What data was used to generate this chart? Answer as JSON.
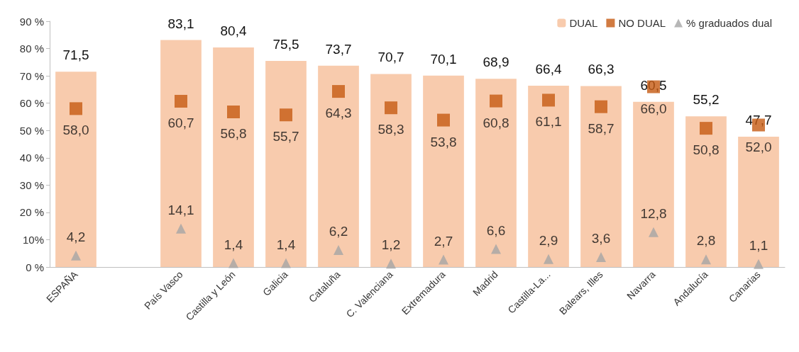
{
  "chart_data": {
    "type": "bar",
    "categories": [
      "ESPAÑA",
      null,
      "País Vasco",
      "Castilla y León",
      "Galicia",
      "Cataluña",
      "C. Valenciana",
      "Extremadura",
      "Madrid",
      "Castilla-La...",
      "Balears, Illes",
      "Navarra",
      "Andalucía",
      "Canarias"
    ],
    "series": [
      {
        "name": "DUAL",
        "type": "bar",
        "color": "#f8cbad",
        "values": [
          71.5,
          null,
          83.1,
          80.4,
          75.5,
          73.7,
          70.7,
          70.1,
          68.9,
          66.4,
          66.3,
          60.5,
          55.2,
          47.7
        ],
        "value_labels": [
          "71,5",
          null,
          "83,1",
          "80,4",
          "75,5",
          "73,7",
          "70,7",
          "70,1",
          "68,9",
          "66,4",
          "66,3",
          "60,5",
          "55,2",
          "47,7"
        ]
      },
      {
        "name": "NO DUAL",
        "type": "scatter",
        "marker": "square",
        "color": "#c55a11",
        "values": [
          58.0,
          null,
          60.7,
          56.8,
          55.7,
          64.3,
          58.3,
          53.8,
          60.8,
          61.1,
          58.7,
          66.0,
          50.8,
          52.0
        ],
        "value_labels": [
          "58,0",
          null,
          "60,7",
          "56,8",
          "55,7",
          "64,3",
          "58,3",
          "53,8",
          "60,8",
          "61,1",
          "58,7",
          "66,0",
          "50,8",
          "52,0"
        ]
      },
      {
        "name": "% graduados dual",
        "type": "scatter",
        "marker": "triangle",
        "color": "#a5a5a5",
        "values": [
          4.2,
          null,
          14.1,
          1.4,
          1.4,
          6.2,
          1.2,
          2.7,
          6.6,
          2.9,
          3.6,
          12.8,
          2.8,
          1.1
        ],
        "value_labels": [
          "4,2",
          null,
          "14,1",
          "1,4",
          "1,4",
          "6,2",
          "1,2",
          "2,7",
          "6,6",
          "2,9",
          "3,6",
          "12,8",
          "2,8",
          "1,1"
        ]
      }
    ],
    "ylim": [
      0,
      90
    ],
    "yticks": [
      {
        "value": 0,
        "label": "0 %"
      },
      {
        "value": 10,
        "label": "10%"
      },
      {
        "value": 20,
        "label": "20 %"
      },
      {
        "value": 30,
        "label": "30 %"
      },
      {
        "value": 40,
        "label": "40 %"
      },
      {
        "value": 50,
        "label": "50 %"
      },
      {
        "value": 60,
        "label": "60 %"
      },
      {
        "value": 70,
        "label": "70 %"
      },
      {
        "value": 80,
        "label": "80 %"
      },
      {
        "value": 90,
        "label": "90 %"
      }
    ],
    "grid": false,
    "legend": "top right"
  }
}
